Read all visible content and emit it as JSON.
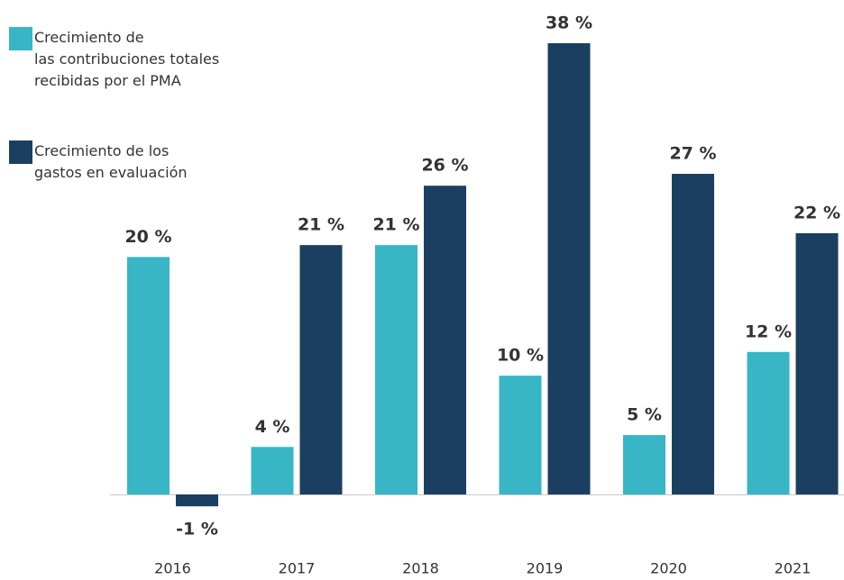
{
  "chart_data": {
    "type": "bar",
    "categories": [
      "2016",
      "2017",
      "2018",
      "2019",
      "2020",
      "2021"
    ],
    "series": [
      {
        "name": "Crecimiento de\nlas contribuciones totales\nrecibidas por el PMA",
        "color": "#38b6c5",
        "values": [
          20,
          4,
          21,
          10,
          5,
          12
        ],
        "value_labels": [
          "20 %",
          "4 %",
          "21 %",
          "10 %",
          "5 %",
          "12 %"
        ]
      },
      {
        "name": "Crecimiento de los\ngastos en evaluación",
        "color": "#1b3f60",
        "values": [
          -1,
          21,
          26,
          38,
          27,
          22
        ],
        "value_labels": [
          "-1 %",
          "21 %",
          "26 %",
          "38 %",
          "27 %",
          "22 %"
        ]
      }
    ],
    "legend": "top-left"
  }
}
